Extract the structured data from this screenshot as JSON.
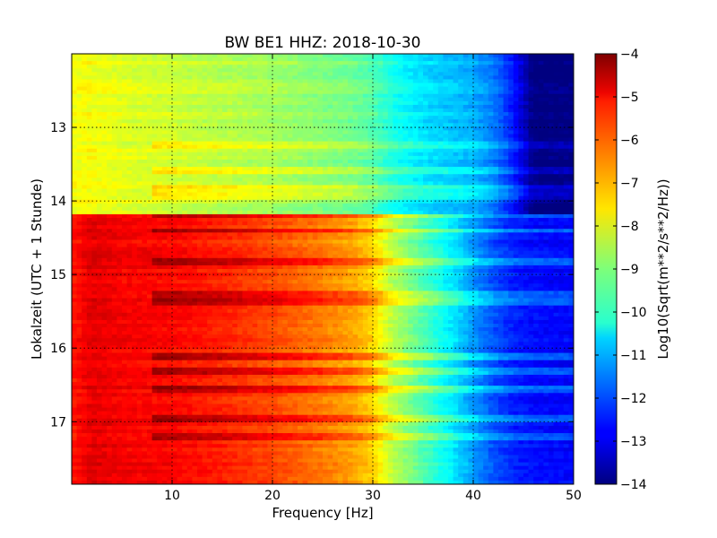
{
  "chart_data": {
    "type": "heatmap",
    "title": "BW BE1 HHZ: 2018-10-30",
    "xlabel": "Frequency [Hz]",
    "ylabel": "Lokalzeit (UTC + 1 Stunde)",
    "colorbar_label": "Log10(Sqrt(m**2/s**2/Hz))",
    "colormap": "jet",
    "xlim": [
      0,
      50
    ],
    "ylim": [
      12.0,
      17.85
    ],
    "y_inverted": true,
    "grid": true,
    "x_ticks": [
      10,
      20,
      30,
      40,
      50
    ],
    "x_tick_labels": [
      "10",
      "20",
      "30",
      "40",
      "50"
    ],
    "y_ticks": [
      13,
      14,
      15,
      16,
      17
    ],
    "y_tick_labels": [
      "13",
      "14",
      "15",
      "16",
      "17"
    ],
    "clim": [
      -14,
      -4
    ],
    "colorbar_ticks": [
      -4,
      -5,
      -6,
      -7,
      -8,
      -9,
      -10,
      -11,
      -12,
      -13,
      -14
    ],
    "colorbar_tick_labels": [
      "−4",
      "−5",
      "−6",
      "−7",
      "−8",
      "−9",
      "−10",
      "−11",
      "−12",
      "−13",
      "−14"
    ],
    "regime_change_time": 14.2,
    "profile_frequency": [
      0,
      2,
      5,
      10,
      15,
      20,
      25,
      28,
      30,
      32,
      35,
      38,
      40,
      42,
      44,
      46,
      50
    ],
    "profile_before": [
      -7.8,
      -7.8,
      -8.0,
      -8.2,
      -8.4,
      -8.6,
      -8.9,
      -9.1,
      -9.4,
      -10.0,
      -10.5,
      -10.8,
      -11.0,
      -11.5,
      -12.5,
      -14.0,
      -14.0
    ],
    "profile_after": [
      -5.5,
      -5.0,
      -5.2,
      -5.3,
      -5.6,
      -6.0,
      -6.5,
      -6.9,
      -7.4,
      -8.5,
      -9.5,
      -10.5,
      -11.3,
      -12.0,
      -12.5,
      -12.7,
      -12.8
    ],
    "bright_time_bands_after": [
      14.2,
      14.4,
      14.82,
      15.28,
      15.37,
      16.12,
      16.3,
      16.55,
      16.95,
      17.2
    ],
    "bright_time_bands_before": [
      13.25,
      13.58,
      13.82,
      13.92
    ]
  }
}
